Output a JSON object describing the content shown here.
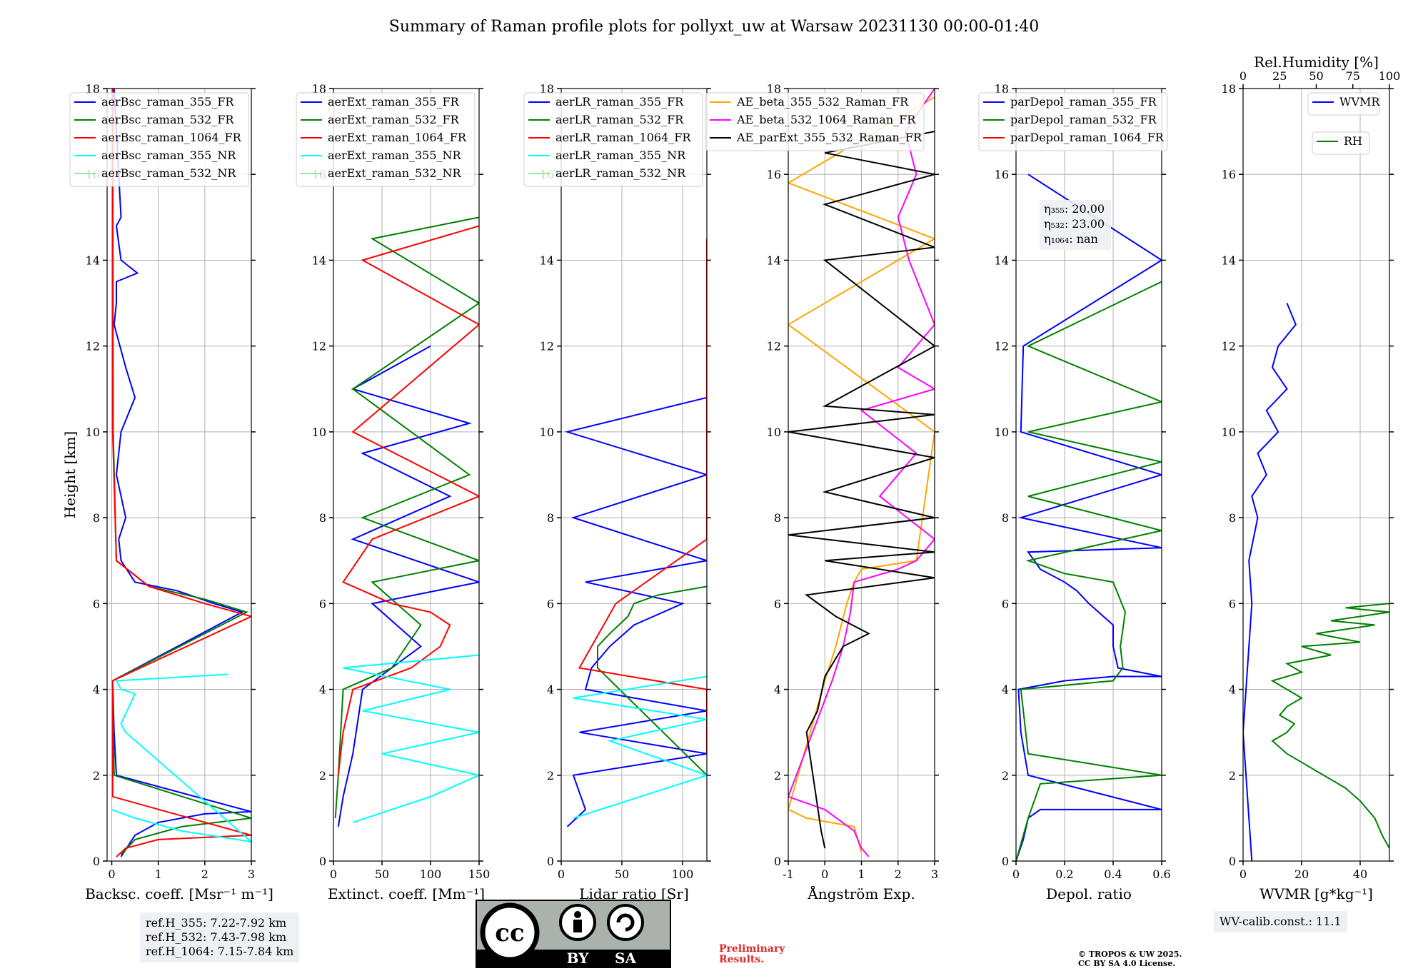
{
  "figure": {
    "title": "Summary of Raman profile plots for pollyxt_uw at Warsaw 20231130 00:00-01:40",
    "info_boxes": {
      "refH": [
        "ref.H_355: 7.22-7.92 km",
        "ref.H_532: 7.43-7.98 km",
        "ref.H_1064: 7.15-7.84 km"
      ],
      "wv_calib": "WV-calib.const.: 11.1"
    },
    "preliminary": [
      "Preliminary",
      "Results."
    ],
    "copyright": [
      "© TROPOS & UW 2025.",
      "CC BY SA 4.0 License."
    ],
    "license_badge": {
      "cc": "cc",
      "by": "BY",
      "sa": "SA"
    },
    "colors": {
      "blue": "#0000ff",
      "green": "#008000",
      "red": "#ff0000",
      "cyan": "#00ffff",
      "lightgreen": "#90ee90",
      "orange": "#ffa500",
      "magenta": "#ff00ff",
      "black": "#000000"
    }
  },
  "chart_data": [
    {
      "type": "line",
      "id": "backscatter",
      "xlabel": "Backsc. coeff. [Msr⁻¹ m⁻¹]",
      "ylabel": "Height [km]",
      "xlim": [
        -0.1,
        3
      ],
      "ylim": [
        0,
        18
      ],
      "xticks": [
        0,
        1,
        2,
        3
      ],
      "yticks": [
        0,
        2,
        4,
        6,
        8,
        10,
        12,
        14,
        16,
        18
      ],
      "legend": [
        "aerBsc_raman_355_FR",
        "aerBsc_raman_532_FR",
        "aerBsc_raman_1064_FR",
        "aerBsc_raman_355_NR",
        "aerBsc_raman_532_NR"
      ],
      "series": [
        {
          "name": "aerBsc_raman_355_FR",
          "color": "blue",
          "x": [
            0.2,
            0.5,
            1.0,
            2.0,
            3.0,
            0.1,
            0.05,
            0.02,
            2.8,
            2.2,
            1.4,
            0.5,
            0.2,
            0.15,
            0.3,
            0.1,
            0.2,
            0.5,
            0.3,
            0.05,
            0.1,
            0.1,
            0.55,
            0.2,
            0.1,
            0.2,
            0.05
          ],
          "y": [
            0.1,
            0.6,
            0.9,
            1.1,
            1.15,
            2.0,
            3.0,
            4.2,
            5.8,
            6.0,
            6.3,
            6.5,
            7.0,
            7.5,
            8.0,
            9.0,
            10.0,
            10.8,
            11.5,
            12.5,
            13.0,
            13.5,
            13.7,
            14.0,
            14.8,
            15.0,
            18.0
          ]
        },
        {
          "name": "aerBsc_raman_532_FR",
          "color": "green",
          "x": [
            0.2,
            0.5,
            1.5,
            3.0,
            0.05,
            0.02,
            2.9,
            2.0,
            0.8,
            0.1,
            0.03,
            0.02
          ],
          "y": [
            0.15,
            0.5,
            0.8,
            1.0,
            2.0,
            4.2,
            5.8,
            6.1,
            6.4,
            7.0,
            10.0,
            18.0
          ]
        },
        {
          "name": "aerBsc_raman_1064_FR",
          "color": "red",
          "x": [
            0.1,
            0.3,
            1.0,
            3.0,
            0.02,
            0.02,
            3.0,
            2.0,
            0.8,
            0.1,
            0.02,
            0.02
          ],
          "y": [
            0.1,
            0.3,
            0.5,
            0.6,
            1.5,
            4.2,
            5.7,
            6.0,
            6.4,
            7.0,
            10.0,
            18.0
          ]
        },
        {
          "name": "aerBsc_raman_355_NR",
          "color": "cyan",
          "x": [
            0.0,
            0.5,
            1.5,
            3.0,
            0.3,
            0.2,
            0.5,
            0.2,
            0.1,
            2.5
          ],
          "y": [
            1.2,
            1.0,
            0.7,
            0.45,
            3.0,
            3.2,
            3.9,
            4.0,
            4.2,
            4.35
          ]
        },
        {
          "name": "aerBsc_raman_532_NR",
          "color": "lightgreen",
          "x": [],
          "y": []
        }
      ]
    },
    {
      "type": "line",
      "id": "extinction",
      "xlabel": "Extinct. coeff. [Mm⁻¹]",
      "xlim": [
        0,
        150
      ],
      "ylim": [
        0,
        18
      ],
      "xticks": [
        0,
        50,
        100,
        150
      ],
      "yticks": [
        0,
        2,
        4,
        6,
        8,
        10,
        12,
        14,
        16,
        18
      ],
      "legend": [
        "aerExt_raman_355_FR",
        "aerExt_raman_532_FR",
        "aerExt_raman_1064_FR",
        "aerExt_raman_355_NR",
        "aerExt_raman_532_NR"
      ],
      "series": [
        {
          "name": "aerExt_raman_355_FR",
          "color": "blue",
          "x": [
            5,
            10,
            20,
            30,
            60,
            90,
            40,
            150,
            20,
            120,
            30,
            140,
            20,
            100
          ],
          "y": [
            0.8,
            1.5,
            2.5,
            4.0,
            4.5,
            5.0,
            6.0,
            6.5,
            7.5,
            8.5,
            9.5,
            10.2,
            11.0,
            12.0
          ]
        },
        {
          "name": "aerExt_raman_532_FR",
          "color": "green",
          "x": [
            2,
            5,
            10,
            60,
            90,
            40,
            150,
            30,
            140,
            20,
            150,
            40,
            150
          ],
          "y": [
            1.0,
            2.0,
            4.0,
            4.5,
            5.5,
            6.5,
            7.0,
            8.0,
            9.0,
            11.0,
            13.0,
            14.5,
            15.0
          ]
        },
        {
          "name": "aerExt_raman_1064_FR",
          "color": "red",
          "x": [
            5,
            10,
            20,
            80,
            110,
            120,
            100,
            60,
            10,
            40,
            150,
            20,
            150,
            30,
            150
          ],
          "y": [
            2.0,
            3.0,
            4.0,
            4.5,
            5.0,
            5.5,
            5.8,
            6.0,
            6.5,
            7.5,
            8.5,
            10.0,
            12.5,
            14.0,
            14.8
          ]
        },
        {
          "name": "aerExt_raman_355_NR",
          "color": "cyan",
          "x": [
            20,
            100,
            150,
            50,
            150,
            30,
            120,
            10,
            150
          ],
          "y": [
            0.9,
            1.5,
            2.0,
            2.5,
            3.0,
            3.5,
            4.0,
            4.5,
            4.8
          ]
        },
        {
          "name": "aerExt_raman_532_NR",
          "color": "lightgreen",
          "x": [],
          "y": []
        }
      ]
    },
    {
      "type": "line",
      "id": "lidar_ratio",
      "xlabel": "Lidar ratio [Sr]",
      "xlim": [
        0,
        120
      ],
      "ylim": [
        0,
        18
      ],
      "xticks": [
        0,
        50,
        100
      ],
      "yticks": [
        0,
        2,
        4,
        6,
        8,
        10,
        12,
        14,
        16,
        18
      ],
      "legend": [
        "aerLR_raman_355_FR",
        "aerLR_raman_532_FR",
        "aerLR_raman_1064_FR",
        "aerLR_raman_355_NR",
        "aerLR_raman_532_NR"
      ],
      "series": [
        {
          "name": "aerLR_raman_355_FR",
          "color": "blue",
          "x": [
            5,
            20,
            10,
            120,
            15,
            120,
            20,
            25,
            40,
            60,
            100,
            20,
            120,
            10,
            120,
            5,
            120
          ],
          "y": [
            0.8,
            1.2,
            2.0,
            2.5,
            3.0,
            3.5,
            4.0,
            4.5,
            5.0,
            5.5,
            6.0,
            6.5,
            7.0,
            8.0,
            9.0,
            10.0,
            10.8
          ]
        },
        {
          "name": "aerLR_raman_532_FR",
          "color": "green",
          "x": [
            120,
            30,
            30,
            40,
            55,
            60,
            80,
            120
          ],
          "y": [
            2.0,
            4.5,
            5.0,
            5.3,
            5.7,
            6.0,
            6.2,
            6.4
          ]
        },
        {
          "name": "aerLR_raman_1064_FR",
          "color": "red",
          "x": [
            120,
            120,
            15,
            25,
            35,
            45,
            120,
            120,
            120,
            120,
            120
          ],
          "y": [
            2.5,
            4.0,
            4.5,
            5.0,
            5.5,
            6.0,
            7.5,
            9.0,
            11.0,
            12.5,
            14.5
          ]
        },
        {
          "name": "aerLR_raman_355_NR",
          "color": "cyan",
          "x": [
            10,
            120,
            40,
            120,
            10,
            120
          ],
          "y": [
            1.0,
            2.0,
            2.8,
            3.3,
            3.8,
            4.3
          ]
        },
        {
          "name": "aerLR_raman_532_NR",
          "color": "lightgreen",
          "x": [],
          "y": []
        }
      ]
    },
    {
      "type": "line",
      "id": "angstrom",
      "xlabel": "Ångström Exp.",
      "xlim": [
        -1,
        3
      ],
      "ylim": [
        0,
        18
      ],
      "xticks": [
        -1,
        0,
        1,
        2,
        3
      ],
      "yticks": [
        0,
        2,
        4,
        6,
        8,
        10,
        12,
        14,
        16,
        18
      ],
      "legend": [
        "AE_beta_355_532_Raman_FR",
        "AE_beta_532_1064_Raman_FR",
        "AE_parExt_355_532_Raman_FR"
      ],
      "series": [
        {
          "name": "AE_beta_355_532_Raman_FR",
          "color": "orange",
          "x": [
            1.0,
            0.8,
            -0.5,
            -1.0,
            0.0,
            0.3,
            0.6,
            0.8,
            1.0,
            2.5,
            3.0,
            -1.0,
            3.0,
            -1.0,
            3.0
          ],
          "y": [
            0.2,
            0.8,
            1.0,
            1.2,
            4.2,
            5.0,
            6.0,
            6.5,
            6.8,
            7.0,
            10.0,
            12.5,
            14.5,
            15.8,
            17.8
          ]
        },
        {
          "name": "AE_beta_532_1064_Raman_FR",
          "color": "magenta",
          "x": [
            1.2,
            1.0,
            0.8,
            0.0,
            -1.0,
            0.2,
            0.5,
            0.7,
            0.8,
            2.0,
            2.5,
            3.0,
            1.5,
            2.5,
            1.0,
            3.0,
            2.0,
            3.0,
            2.3,
            2.0,
            2.5,
            2.2,
            3.0
          ],
          "y": [
            0.1,
            0.3,
            0.7,
            1.2,
            1.5,
            4.2,
            5.0,
            5.8,
            6.5,
            6.8,
            7.0,
            7.5,
            8.5,
            9.5,
            10.5,
            11.0,
            11.5,
            12.5,
            14.0,
            15.0,
            16.0,
            17.0,
            18.0
          ]
        },
        {
          "name": "AE_parExt_355_532_Raman_FR",
          "color": "black",
          "x": [
            0.0,
            -0.1,
            -0.5,
            -0.2,
            0.0,
            0.5,
            1.2,
            0.3,
            -0.5,
            3.0,
            0.0,
            3.0,
            -1.0,
            3.0,
            0.0,
            3.0,
            -1.0,
            3.0,
            0.0,
            3.0,
            0.0,
            3.0,
            0.0,
            3.0,
            0.0,
            3.0
          ],
          "y": [
            0.3,
            0.7,
            3.0,
            3.5,
            4.3,
            5.0,
            5.3,
            5.7,
            6.2,
            6.6,
            7.0,
            7.2,
            7.6,
            8.0,
            8.6,
            9.4,
            10.0,
            10.4,
            10.6,
            12.0,
            14.0,
            14.3,
            15.3,
            16.0,
            16.5,
            17.0
          ]
        }
      ]
    },
    {
      "type": "line",
      "id": "depolarization",
      "xlabel": "Depol. ratio",
      "xlim": [
        0,
        0.6
      ],
      "ylim": [
        0,
        18
      ],
      "xticks": [
        0.0,
        0.2,
        0.4,
        0.6
      ],
      "yticks": [
        0,
        2,
        4,
        6,
        8,
        10,
        12,
        14,
        16,
        18
      ],
      "legend": [
        "parDepol_raman_355_FR",
        "parDepol_raman_532_FR",
        "parDepol_raman_1064_FR"
      ],
      "eta_labels": [
        "η₃₅₅: 20.00",
        "η₅₃₂: 23.00",
        "η₁₀₆₄: nan"
      ],
      "series": [
        {
          "name": "parDepol_raman_355_FR",
          "color": "blue",
          "x": [
            0.0,
            0.03,
            0.05,
            0.1,
            0.6,
            0.05,
            0.02,
            0.01,
            0.2,
            0.4,
            0.6,
            0.42,
            0.4,
            0.4,
            0.3,
            0.25,
            0.2,
            0.1,
            0.05,
            0.6,
            0.02,
            0.6,
            0.02,
            0.03,
            0.6,
            0.05
          ],
          "y": [
            0.0,
            0.5,
            1.0,
            1.2,
            1.2,
            2.0,
            3.0,
            4.0,
            4.2,
            4.3,
            4.3,
            4.5,
            5.0,
            5.5,
            6.0,
            6.3,
            6.5,
            6.8,
            7.2,
            7.3,
            8.0,
            9.0,
            10.0,
            12.0,
            14.0,
            16.0
          ]
        },
        {
          "name": "parDepol_raman_532_FR",
          "color": "green",
          "x": [
            0.0,
            0.05,
            0.1,
            0.6,
            0.05,
            0.02,
            0.4,
            0.44,
            0.43,
            0.45,
            0.4,
            0.3,
            0.2,
            0.1,
            0.05,
            0.6,
            0.05,
            0.6,
            0.05,
            0.6,
            0.05,
            0.6
          ],
          "y": [
            0.0,
            1.0,
            1.8,
            2.0,
            2.5,
            4.0,
            4.2,
            4.5,
            5.0,
            5.8,
            6.5,
            6.6,
            6.7,
            6.9,
            7.0,
            7.7,
            8.5,
            9.3,
            10.0,
            10.7,
            12.0,
            13.5
          ]
        },
        {
          "name": "parDepol_raman_1064_FR",
          "color": "red",
          "x": [],
          "y": []
        }
      ]
    },
    {
      "type": "line",
      "id": "wvmr_rh",
      "xlabel": "WVMR [g*kg⁻¹]",
      "x2label": "Rel.Humidity [%]",
      "xlim": [
        0,
        50
      ],
      "ylim": [
        0,
        18
      ],
      "x2lim": [
        0,
        100
      ],
      "xticks": [
        0,
        20,
        40
      ],
      "x2ticks": [
        0,
        25,
        50,
        75,
        100
      ],
      "yticks": [
        0,
        2,
        4,
        6,
        8,
        10,
        12,
        14,
        16,
        18
      ],
      "legend_wvmr": "WVMR",
      "legend_rh": "RH",
      "series": [
        {
          "name": "WVMR",
          "color": "blue",
          "axis": "x",
          "x": [
            3,
            2,
            1,
            0,
            1,
            2,
            3,
            2,
            5,
            3,
            8,
            5,
            12,
            8,
            15,
            10,
            12,
            18,
            15
          ],
          "y": [
            0.0,
            1.0,
            2.0,
            3.0,
            4.0,
            5.0,
            6.0,
            7.0,
            8.0,
            8.5,
            9.0,
            9.5,
            10.0,
            10.5,
            11.0,
            11.5,
            12.0,
            12.5,
            13.0
          ]
        },
        {
          "name": "RH",
          "color": "green",
          "axis": "x2",
          "x": [
            100,
            95,
            90,
            80,
            70,
            60,
            50,
            40,
            30,
            20,
            30,
            35,
            25,
            30,
            40,
            30,
            20,
            40,
            30,
            60,
            40,
            80,
            50,
            90,
            60,
            100,
            70,
            100
          ],
          "y": [
            0.3,
            0.6,
            1.0,
            1.4,
            1.7,
            1.9,
            2.1,
            2.3,
            2.5,
            2.8,
            3.0,
            3.2,
            3.4,
            3.6,
            3.8,
            4.0,
            4.2,
            4.4,
            4.6,
            4.8,
            5.0,
            5.1,
            5.3,
            5.5,
            5.6,
            5.8,
            5.9,
            6.0
          ]
        }
      ]
    }
  ]
}
